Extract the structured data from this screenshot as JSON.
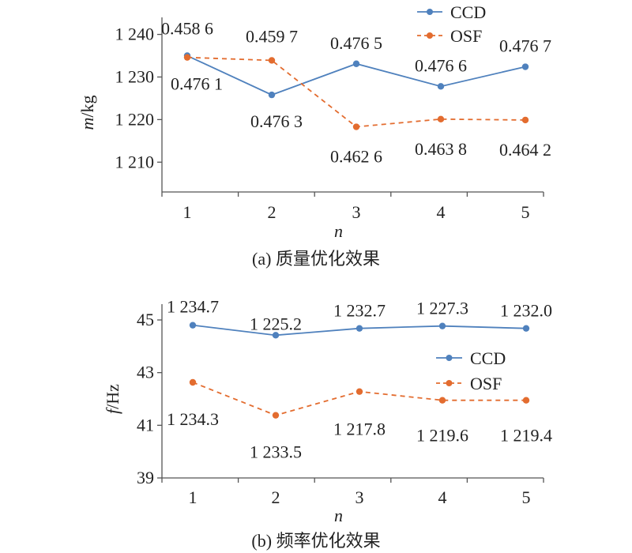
{
  "colors": {
    "ccd": "#4f81bd",
    "osf": "#e36c2f",
    "axis": "#555555",
    "text": "#222222"
  },
  "chart_data": [
    {
      "type": "line",
      "caption": "(a) 质量优化效果",
      "xlabel": "n",
      "ylabel_italic": "m",
      "ylabel_unit": "/kg",
      "x": [
        1,
        2,
        3,
        4,
        5
      ],
      "x_ticks": [
        "1",
        "2",
        "3",
        "4",
        "5"
      ],
      "y_ticks": [
        "1 210",
        "1 220",
        "1 230",
        "1 240"
      ],
      "y_tick_values": [
        1210,
        1220,
        1230,
        1240
      ],
      "ylim": [
        1203,
        1244
      ],
      "legend_position": "top-right",
      "series": [
        {
          "name": "CCD",
          "style": "solid",
          "values": [
            1235.0,
            1225.8,
            1233.1,
            1227.8,
            1232.4
          ],
          "labels": [
            "0.476 1",
            "0.476 3",
            "0.476 5",
            "0.476 6",
            "0.476 7"
          ]
        },
        {
          "name": "OSF",
          "style": "dashed",
          "values": [
            1234.6,
            1233.9,
            1218.3,
            1220.1,
            1219.9
          ],
          "labels": [
            "0.458 6",
            "0.459 7",
            "0.462 6",
            "0.463 8",
            "0.464 2"
          ]
        }
      ]
    },
    {
      "type": "line",
      "caption": "(b) 频率优化效果",
      "xlabel": "n",
      "ylabel_italic": "f",
      "ylabel_unit": "/Hz",
      "x": [
        1,
        2,
        3,
        4,
        5
      ],
      "x_ticks": [
        "1",
        "2",
        "3",
        "4",
        "5"
      ],
      "y_ticks": [
        "39",
        "41",
        "43",
        "45"
      ],
      "y_tick_values": [
        39,
        41,
        43,
        45
      ],
      "ylim": [
        39,
        45.6
      ],
      "legend_position": "right",
      "series": [
        {
          "name": "CCD",
          "style": "solid",
          "values": [
            44.8,
            44.42,
            44.68,
            44.77,
            44.68
          ],
          "labels": [
            "1 234.7",
            "1 225.2",
            "1 232.7",
            "1 227.3",
            "1 232.0"
          ]
        },
        {
          "name": "OSF",
          "style": "dashed",
          "values": [
            42.63,
            41.38,
            42.28,
            41.95,
            41.95
          ],
          "labels": [
            "1 234.3",
            "1 233.5",
            "1 217.8",
            "1 219.6",
            "1 219.4"
          ]
        }
      ]
    }
  ]
}
